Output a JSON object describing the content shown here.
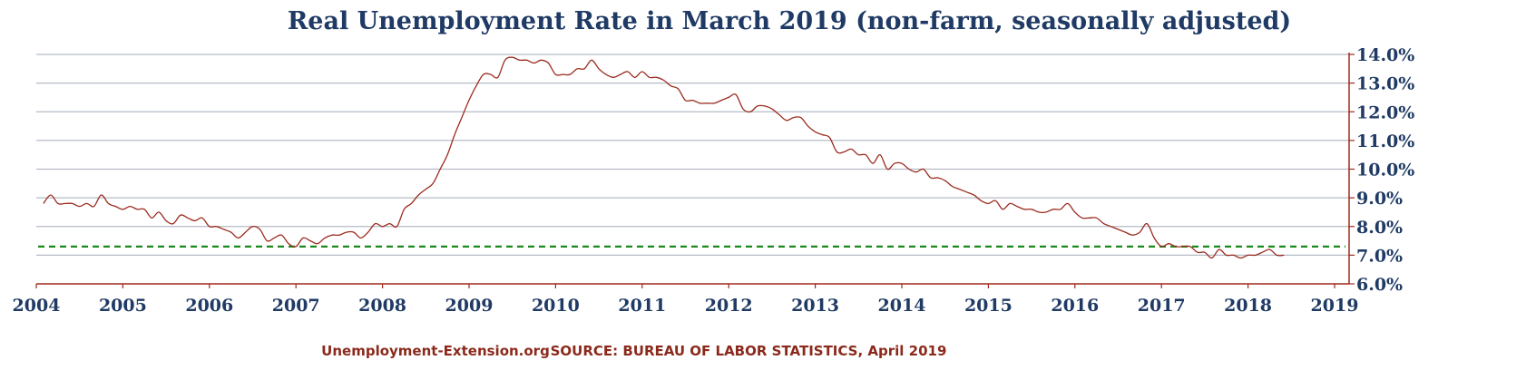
{
  "chart_data": {
    "type": "line",
    "title": "Real Unemployment Rate in March 2019 (non-farm, seasonally adjusted)",
    "xlabel": "",
    "ylabel": "",
    "x_ticks": [
      "2004",
      "2005",
      "2006",
      "2007",
      "2008",
      "2009",
      "2010",
      "2011",
      "2012",
      "2013",
      "2014",
      "2015",
      "2016",
      "2017",
      "2018",
      "2019"
    ],
    "y_ticks": [
      "6.0%",
      "7.0%",
      "8.0%",
      "9.0%",
      "10.0%",
      "11.0%",
      "12.0%",
      "13.0%",
      "14.0%"
    ],
    "xlim": [
      2004.0,
      2019.25
    ],
    "ylim": [
      6.0,
      14.0
    ],
    "grid": true,
    "y_axis_side": "right",
    "colors": {
      "series": "#9a2b1e",
      "reference": "#1a8a1a",
      "text": "#1f3a64",
      "grid": "#b5bcc6",
      "axis": "#a0281a"
    },
    "reference_line": {
      "y": 7.3
    },
    "series": [
      {
        "x_start": 2004.083,
        "x_step": 0.08333,
        "values": [
          8.8,
          9.1,
          8.8,
          8.8,
          8.8,
          8.7,
          8.8,
          8.7,
          9.1,
          8.8,
          8.7,
          8.6,
          8.7,
          8.6,
          8.6,
          8.3,
          8.5,
          8.2,
          8.1,
          8.4,
          8.3,
          8.2,
          8.3,
          8.0,
          8.0,
          7.9,
          7.8,
          7.6,
          7.8,
          8.0,
          7.9,
          7.5,
          7.6,
          7.7,
          7.4,
          7.3,
          7.6,
          7.5,
          7.4,
          7.6,
          7.7,
          7.7,
          7.8,
          7.8,
          7.6,
          7.8,
          8.1,
          8.0,
          8.1,
          8.0,
          8.6,
          8.8,
          9.1,
          9.3,
          9.5,
          10.0,
          10.5,
          11.2,
          11.8,
          12.4,
          12.9,
          13.3,
          13.3,
          13.2,
          13.8,
          13.9,
          13.8,
          13.8,
          13.7,
          13.8,
          13.7,
          13.3,
          13.3,
          13.3,
          13.5,
          13.5,
          13.8,
          13.5,
          13.3,
          13.2,
          13.3,
          13.4,
          13.2,
          13.4,
          13.2,
          13.2,
          13.1,
          12.9,
          12.8,
          12.4,
          12.4,
          12.3,
          12.3,
          12.3,
          12.4,
          12.5,
          12.6,
          12.1,
          12.0,
          12.2,
          12.2,
          12.1,
          11.9,
          11.7,
          11.8,
          11.8,
          11.5,
          11.3,
          11.2,
          11.1,
          10.6,
          10.6,
          10.7,
          10.5,
          10.5,
          10.2,
          10.5,
          10.0,
          10.2,
          10.2,
          10.0,
          9.9,
          10.0,
          9.7,
          9.7,
          9.6,
          9.4,
          9.3,
          9.2,
          9.1,
          8.9,
          8.8,
          8.9,
          8.6,
          8.8,
          8.7,
          8.6,
          8.6,
          8.5,
          8.5,
          8.6,
          8.6,
          8.8,
          8.5,
          8.3,
          8.3,
          8.3,
          8.1,
          8.0,
          7.9,
          7.8,
          7.7,
          7.8,
          8.1,
          7.6,
          7.3,
          7.4,
          7.3,
          7.3,
          7.3,
          7.1,
          7.1,
          6.9,
          7.2,
          7.0,
          7.0,
          6.9,
          7.0,
          7.0,
          7.1,
          7.2,
          7.0,
          7.0
        ]
      }
    ]
  },
  "footer": {
    "site": "Unemployment-Extension.org",
    "source": "SOURCE: BUREAU OF LABOR STATISTICS, April 2019"
  }
}
